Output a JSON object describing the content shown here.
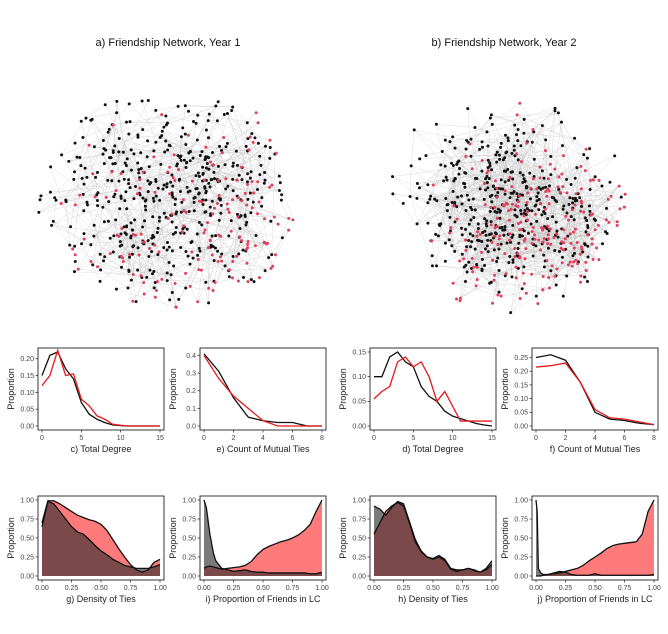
{
  "colors": {
    "node_black": "#111111",
    "node_red": "#e0405a",
    "edge": "#b9b9b9",
    "line_black": "#111111",
    "line_red": "#e41a1c",
    "fill_black": "#2a2a2a",
    "fill_red": "#ff5a5a"
  },
  "networks": [
    {
      "title": "a) Friendship Network, Year 1",
      "black_nodes": 470,
      "red_nodes": 160,
      "edges": 900
    },
    {
      "title": "b) Friendship Network, Year 2",
      "black_nodes": 430,
      "red_nodes": 220,
      "edges": 1500
    }
  ],
  "chart_data": [
    {
      "id": "c",
      "type": "line",
      "xlabel": "c) Total Degree",
      "ylabel": "Proportion",
      "xlim": [
        0,
        15
      ],
      "ylim": [
        0,
        0.22
      ],
      "xticks": [
        "0",
        "5",
        "10",
        "15"
      ],
      "yticks": [
        "0.00",
        "0.05",
        "0.10",
        "0.15",
        "0.20"
      ],
      "x": [
        0,
        1,
        2,
        3,
        4,
        5,
        6,
        7,
        8,
        9,
        10,
        11,
        12,
        13,
        14,
        15
      ],
      "series": [
        {
          "name": "black",
          "values": [
            0.15,
            0.21,
            0.22,
            0.17,
            0.14,
            0.07,
            0.035,
            0.02,
            0.01,
            0.003,
            0.001,
            0,
            0,
            0,
            0,
            0
          ]
        },
        {
          "name": "red",
          "values": [
            0.12,
            0.15,
            0.225,
            0.15,
            0.155,
            0.08,
            0.06,
            0.03,
            0.02,
            0.005,
            0.002,
            0,
            0,
            0,
            0,
            0
          ]
        }
      ]
    },
    {
      "id": "e",
      "type": "line",
      "xlabel": "e) Count of Mutual Ties",
      "ylabel": "Proportion",
      "xlim": [
        0,
        8
      ],
      "ylim": [
        0,
        0.42
      ],
      "xticks": [
        "0",
        "2",
        "4",
        "6",
        "8"
      ],
      "yticks": [
        "0.0",
        "0.1",
        "0.2",
        "0.3",
        "0.4"
      ],
      "x": [
        0,
        1,
        2,
        3,
        4,
        5,
        6,
        7,
        8
      ],
      "series": [
        {
          "name": "black",
          "values": [
            0.41,
            0.31,
            0.16,
            0.05,
            0.03,
            0.02,
            0.02,
            0,
            0
          ]
        },
        {
          "name": "red",
          "values": [
            0.4,
            0.27,
            0.17,
            0.1,
            0.03,
            0,
            0,
            0,
            0
          ]
        }
      ]
    },
    {
      "id": "d",
      "type": "line",
      "xlabel": "d) Total Degree",
      "ylabel": "Proportion",
      "xlim": [
        0,
        15
      ],
      "ylim": [
        0,
        0.15
      ],
      "xticks": [
        "0",
        "5",
        "10",
        "15"
      ],
      "yticks": [
        "0.00",
        "0.05",
        "0.10",
        "0.15"
      ],
      "x": [
        0,
        1,
        2,
        3,
        4,
        5,
        6,
        7,
        8,
        9,
        10,
        11,
        12,
        13,
        14,
        15
      ],
      "series": [
        {
          "name": "black",
          "values": [
            0.1,
            0.1,
            0.14,
            0.15,
            0.13,
            0.12,
            0.08,
            0.06,
            0.05,
            0.03,
            0.02,
            0.015,
            0.01,
            0.005,
            0.002,
            0
          ]
        },
        {
          "name": "red",
          "values": [
            0.055,
            0.07,
            0.08,
            0.13,
            0.14,
            0.12,
            0.13,
            0.1,
            0.05,
            0.07,
            0.04,
            0.01,
            0.01,
            0.01,
            0.01,
            0.01
          ]
        }
      ]
    },
    {
      "id": "f",
      "type": "line",
      "xlabel": "f) Count of Mutual Ties",
      "ylabel": "Proportion",
      "xlim": [
        0,
        8
      ],
      "ylim": [
        0,
        0.27
      ],
      "xticks": [
        "0",
        "2",
        "4",
        "6",
        "8"
      ],
      "yticks": [
        "0.00",
        "0.05",
        "0.10",
        "0.15",
        "0.20",
        "0.25"
      ],
      "x": [
        0,
        1,
        2,
        3,
        4,
        5,
        6,
        7,
        8
      ],
      "series": [
        {
          "name": "black",
          "values": [
            0.25,
            0.26,
            0.24,
            0.16,
            0.05,
            0.025,
            0.02,
            0.01,
            0.005
          ]
        },
        {
          "name": "red",
          "values": [
            0.215,
            0.22,
            0.23,
            0.16,
            0.06,
            0.03,
            0.025,
            0.015,
            0.005
          ]
        }
      ]
    },
    {
      "id": "g",
      "type": "area",
      "xlabel": "g) Density of Ties",
      "ylabel": "Proportion",
      "xlim": [
        0,
        1
      ],
      "ylim": [
        0,
        1.0
      ],
      "xticks": [
        "0.00",
        "0.25",
        "0.50",
        "0.75",
        "1.00"
      ],
      "yticks": [
        "0.00",
        "0.25",
        "0.50",
        "0.75",
        "1.00"
      ],
      "x": [
        0,
        0.05,
        0.1,
        0.15,
        0.2,
        0.25,
        0.3,
        0.35,
        0.4,
        0.45,
        0.5,
        0.55,
        0.6,
        0.65,
        0.7,
        0.75,
        0.8,
        0.85,
        0.9,
        0.95,
        1.0
      ],
      "series": [
        {
          "name": "black",
          "values": [
            0.65,
            0.98,
            0.95,
            0.85,
            0.75,
            0.65,
            0.58,
            0.55,
            0.48,
            0.4,
            0.33,
            0.28,
            0.22,
            0.18,
            0.14,
            0.12,
            0.1,
            0.1,
            0.1,
            0.12,
            0.15
          ]
        },
        {
          "name": "red",
          "values": [
            0.7,
            0.99,
            0.99,
            0.95,
            0.9,
            0.85,
            0.8,
            0.77,
            0.74,
            0.72,
            0.68,
            0.6,
            0.48,
            0.36,
            0.25,
            0.15,
            0.08,
            0.05,
            0.08,
            0.18,
            0.22
          ]
        }
      ]
    },
    {
      "id": "i",
      "type": "area",
      "xlabel": "i) Proportion of Friends in LC",
      "ylabel": "Proportion",
      "xlim": [
        0,
        1
      ],
      "ylim": [
        0,
        1.0
      ],
      "xticks": [
        "0.00",
        "0.25",
        "0.50",
        "0.75",
        "1.00"
      ],
      "yticks": [
        "0.00",
        "0.25",
        "0.50",
        "0.75",
        "1.00"
      ],
      "x": [
        0,
        0.02,
        0.05,
        0.08,
        0.1,
        0.15,
        0.2,
        0.25,
        0.3,
        0.35,
        0.4,
        0.45,
        0.5,
        0.55,
        0.6,
        0.65,
        0.7,
        0.75,
        0.8,
        0.85,
        0.9,
        0.95,
        1.0
      ],
      "series": [
        {
          "name": "black",
          "values": [
            1.0,
            0.9,
            0.55,
            0.3,
            0.2,
            0.1,
            0.08,
            0.06,
            0.07,
            0.08,
            0.06,
            0.05,
            0.05,
            0.04,
            0.04,
            0.04,
            0.04,
            0.04,
            0.04,
            0.04,
            0.03,
            0.03,
            0.05
          ]
        },
        {
          "name": "red",
          "values": [
            0.1,
            0.12,
            0.13,
            0.12,
            0.11,
            0.09,
            0.1,
            0.11,
            0.12,
            0.14,
            0.19,
            0.28,
            0.35,
            0.39,
            0.42,
            0.45,
            0.47,
            0.5,
            0.54,
            0.6,
            0.68,
            0.85,
            1.0
          ]
        }
      ]
    },
    {
      "id": "h",
      "type": "area",
      "xlabel": "h) Density of Ties",
      "ylabel": "Proportion",
      "xlim": [
        0,
        1
      ],
      "ylim": [
        0,
        1.0
      ],
      "xticks": [
        "0.00",
        "0.25",
        "0.50",
        "0.75",
        "1.00"
      ],
      "yticks": [
        "0.00",
        "0.25",
        "0.50",
        "0.75",
        "1.00"
      ],
      "x": [
        0,
        0.05,
        0.1,
        0.15,
        0.2,
        0.25,
        0.3,
        0.35,
        0.4,
        0.45,
        0.5,
        0.55,
        0.6,
        0.65,
        0.7,
        0.75,
        0.8,
        0.85,
        0.9,
        0.95,
        1.0
      ],
      "series": [
        {
          "name": "black",
          "values": [
            0.92,
            0.88,
            0.8,
            0.9,
            0.98,
            0.95,
            0.72,
            0.48,
            0.33,
            0.25,
            0.23,
            0.27,
            0.22,
            0.1,
            0.08,
            0.08,
            0.1,
            0.08,
            0.05,
            0.1,
            0.2
          ]
        },
        {
          "name": "red",
          "values": [
            0.55,
            0.7,
            0.85,
            0.92,
            0.97,
            0.92,
            0.7,
            0.45,
            0.32,
            0.25,
            0.22,
            0.25,
            0.2,
            0.09,
            0.06,
            0.08,
            0.1,
            0.07,
            0.05,
            0.08,
            0.15
          ]
        }
      ]
    },
    {
      "id": "j",
      "type": "area",
      "xlabel": "j) Proportion of Friends in LC",
      "ylabel": "Proportion",
      "xlim": [
        0,
        1
      ],
      "ylim": [
        0,
        1.0
      ],
      "xticks": [
        "0.00",
        "0.25",
        "0.50",
        "0.75",
        "1.00"
      ],
      "yticks": [
        "0.00",
        "0.25",
        "0.50",
        "0.75",
        "1.00"
      ],
      "x": [
        0,
        0.01,
        0.02,
        0.04,
        0.06,
        0.1,
        0.15,
        0.2,
        0.25,
        0.3,
        0.35,
        0.4,
        0.45,
        0.5,
        0.55,
        0.6,
        0.65,
        0.7,
        0.75,
        0.8,
        0.85,
        0.9,
        0.95,
        1.0
      ],
      "series": [
        {
          "name": "black",
          "values": [
            1.0,
            0.85,
            0.1,
            0.04,
            0.02,
            0.02,
            0.04,
            0.06,
            0.05,
            0.02,
            0.01,
            0.01,
            0.01,
            0.03,
            0.01,
            0.01,
            0.01,
            0.01,
            0.01,
            0.01,
            0.01,
            0.01,
            0.01,
            0.02
          ]
        },
        {
          "name": "red",
          "values": [
            0.0,
            0.0,
            0.0,
            0.0,
            0.01,
            0.02,
            0.03,
            0.04,
            0.06,
            0.08,
            0.1,
            0.14,
            0.2,
            0.25,
            0.3,
            0.36,
            0.4,
            0.42,
            0.43,
            0.44,
            0.45,
            0.55,
            0.85,
            1.0
          ]
        }
      ]
    }
  ]
}
